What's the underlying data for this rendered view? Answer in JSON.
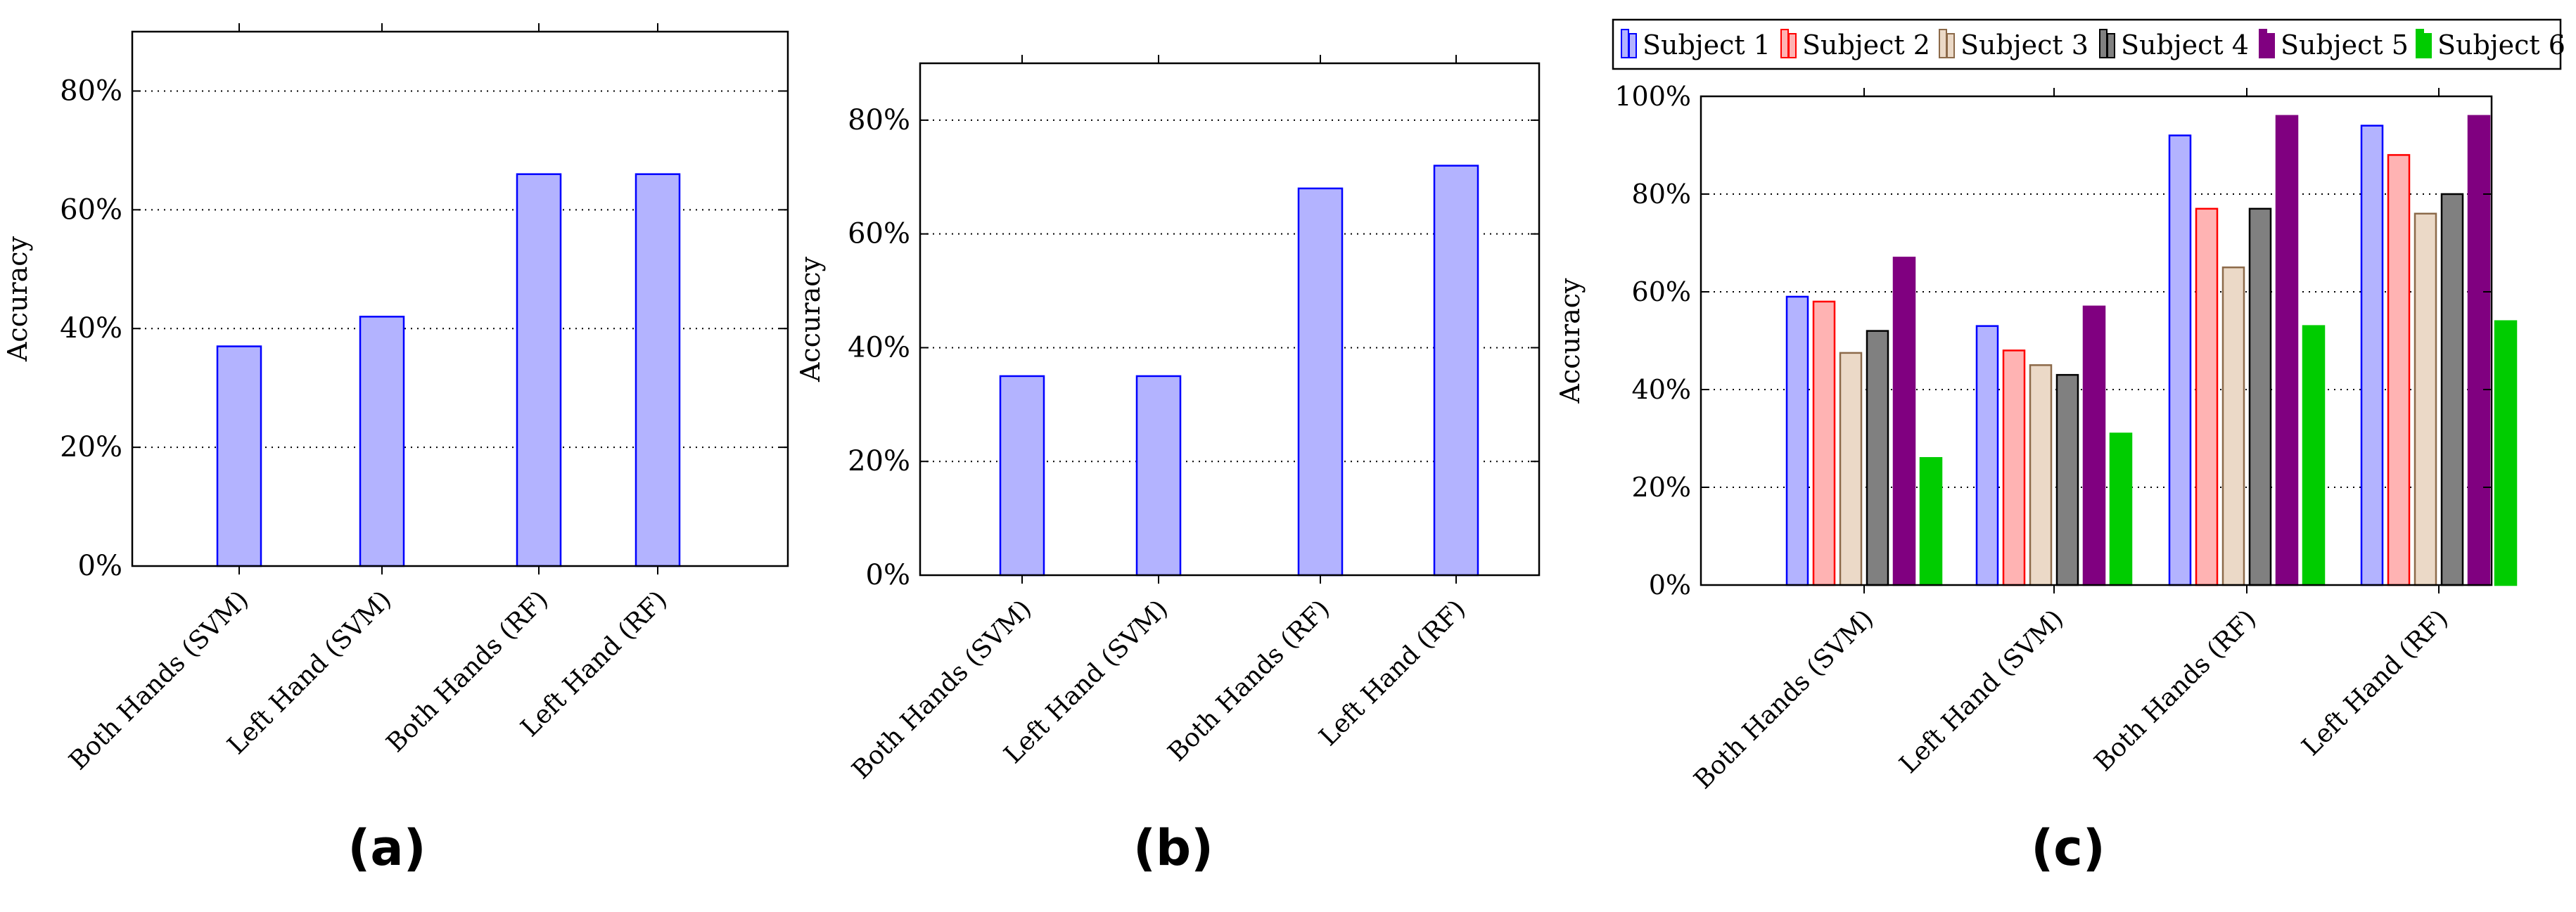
{
  "chart_data": [
    {
      "type": "bar",
      "panel_label": "(a)",
      "ylabel": "Accuracy",
      "ylim": [
        0,
        90
      ],
      "yticks": [
        0,
        20,
        40,
        60,
        80
      ],
      "ytick_labels": [
        "0%",
        "20%",
        "40%",
        "60%",
        "80%"
      ],
      "grid": "horizontal-dotted",
      "categories": [
        "Both Hands (SVM)",
        "Left Hand (SVM)",
        "Both Hands (RF)",
        "Left Hand (RF)"
      ],
      "series": [
        {
          "values": [
            37,
            42,
            66,
            66
          ],
          "fill": "#b3b3ff",
          "stroke": "#0000ff"
        }
      ]
    },
    {
      "type": "bar",
      "panel_label": "(b)",
      "ylabel": "Accuracy",
      "ylim": [
        0,
        90
      ],
      "yticks": [
        0,
        20,
        40,
        60,
        80
      ],
      "ytick_labels": [
        "0%",
        "20%",
        "40%",
        "60%",
        "80%"
      ],
      "grid": "horizontal-dotted",
      "categories": [
        "Both Hands (SVM)",
        "Left Hand (SVM)",
        "Both Hands (RF)",
        "Left Hand (RF)"
      ],
      "series": [
        {
          "values": [
            35,
            35,
            68,
            72
          ],
          "fill": "#b3b3ff",
          "stroke": "#0000ff"
        }
      ]
    },
    {
      "type": "bar",
      "panel_label": "(c)",
      "ylabel": "Accuracy",
      "ylim": [
        0,
        100
      ],
      "yticks": [
        0,
        20,
        40,
        60,
        80,
        100
      ],
      "ytick_labels": [
        "0%",
        "20%",
        "40%",
        "60%",
        "80%",
        "100%"
      ],
      "grid": "horizontal-dotted",
      "legend_position": "top",
      "categories": [
        "Both Hands (SVM)",
        "Left Hand (SVM)",
        "Both Hands (RF)",
        "Left Hand (RF)"
      ],
      "series": [
        {
          "name": "Subject 1",
          "values": [
            59,
            53,
            92,
            94
          ],
          "fill": "#b3b3ff",
          "stroke": "#0000ff"
        },
        {
          "name": "Subject 2",
          "values": [
            58,
            48,
            77,
            88
          ],
          "fill": "#ffb3b3",
          "stroke": "#ff0000"
        },
        {
          "name": "Subject 3",
          "values": [
            47.5,
            45,
            65,
            76
          ],
          "fill": "#ebd9c7",
          "stroke": "#8c6a4a"
        },
        {
          "name": "Subject 4",
          "values": [
            52,
            43,
            77,
            80
          ],
          "fill": "#808080",
          "stroke": "#000000"
        },
        {
          "name": "Subject 5",
          "values": [
            67,
            57,
            96,
            96
          ],
          "fill": "#800080",
          "stroke": "#800080"
        },
        {
          "name": "Subject 6",
          "values": [
            26,
            31,
            53,
            54
          ],
          "fill": "#00cc00",
          "stroke": "#00cc00"
        }
      ]
    }
  ]
}
